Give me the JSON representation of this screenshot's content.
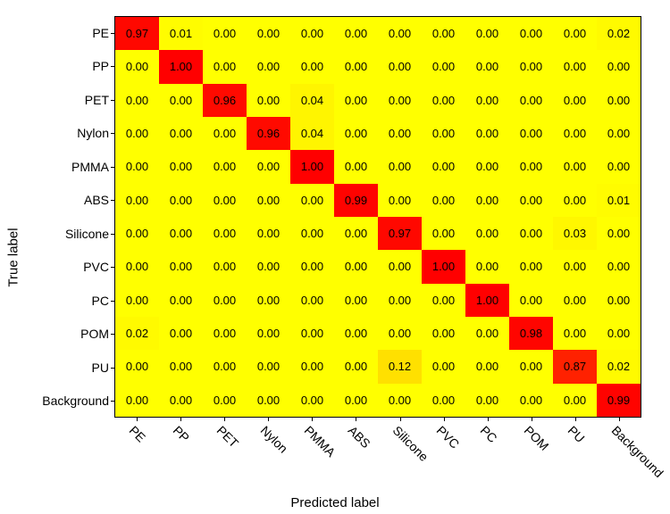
{
  "confusion_matrix": {
    "type": "heatmap",
    "ylabel": "True label",
    "xlabel": "Predicted label",
    "label_fontsize": 15,
    "tick_fontsize": 14,
    "cell_fontsize": 13,
    "categories": [
      "PE",
      "PP",
      "PET",
      "Nylon",
      "PMMA",
      "ABS",
      "Silicone",
      "PVC",
      "PC",
      "POM",
      "PU",
      "Background"
    ],
    "rows": [
      [
        "0.97",
        "0.01",
        "0.00",
        "0.00",
        "0.00",
        "0.00",
        "0.00",
        "0.00",
        "0.00",
        "0.00",
        "0.00",
        "0.02"
      ],
      [
        "0.00",
        "1.00",
        "0.00",
        "0.00",
        "0.00",
        "0.00",
        "0.00",
        "0.00",
        "0.00",
        "0.00",
        "0.00",
        "0.00"
      ],
      [
        "0.00",
        "0.00",
        "0.96",
        "0.00",
        "0.04",
        "0.00",
        "0.00",
        "0.00",
        "0.00",
        "0.00",
        "0.00",
        "0.00"
      ],
      [
        "0.00",
        "0.00",
        "0.00",
        "0.96",
        "0.04",
        "0.00",
        "0.00",
        "0.00",
        "0.00",
        "0.00",
        "0.00",
        "0.00"
      ],
      [
        "0.00",
        "0.00",
        "0.00",
        "0.00",
        "1.00",
        "0.00",
        "0.00",
        "0.00",
        "0.00",
        "0.00",
        "0.00",
        "0.00"
      ],
      [
        "0.00",
        "0.00",
        "0.00",
        "0.00",
        "0.00",
        "0.99",
        "0.00",
        "0.00",
        "0.00",
        "0.00",
        "0.00",
        "0.01"
      ],
      [
        "0.00",
        "0.00",
        "0.00",
        "0.00",
        "0.00",
        "0.00",
        "0.97",
        "0.00",
        "0.00",
        "0.00",
        "0.03",
        "0.00"
      ],
      [
        "0.00",
        "0.00",
        "0.00",
        "0.00",
        "0.00",
        "0.00",
        "0.00",
        "1.00",
        "0.00",
        "0.00",
        "0.00",
        "0.00"
      ],
      [
        "0.00",
        "0.00",
        "0.00",
        "0.00",
        "0.00",
        "0.00",
        "0.00",
        "0.00",
        "1.00",
        "0.00",
        "0.00",
        "0.00"
      ],
      [
        "0.02",
        "0.00",
        "0.00",
        "0.00",
        "0.00",
        "0.00",
        "0.00",
        "0.00",
        "0.00",
        "0.98",
        "0.00",
        "0.00"
      ],
      [
        "0.00",
        "0.00",
        "0.00",
        "0.00",
        "0.00",
        "0.00",
        "0.12",
        "0.00",
        "0.00",
        "0.00",
        "0.87",
        "0.02"
      ],
      [
        "0.00",
        "0.00",
        "0.00",
        "0.00",
        "0.00",
        "0.00",
        "0.00",
        "0.00",
        "0.00",
        "0.00",
        "0.00",
        "0.99"
      ]
    ],
    "colors": {
      "low": "#ffff00",
      "high": "#ff0000",
      "border": "#000000",
      "text": "#000000",
      "background": "#ffffff"
    },
    "value_decimals": 2,
    "color_scale": "linear_yellow_to_red"
  }
}
